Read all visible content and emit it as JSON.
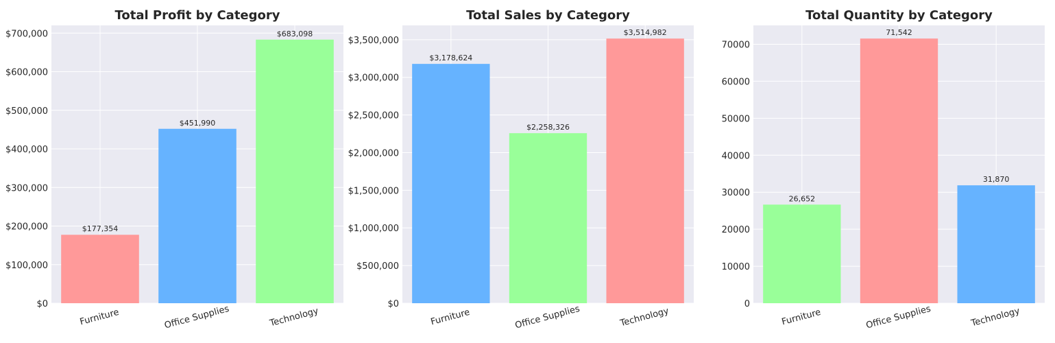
{
  "chart_data": [
    {
      "type": "bar",
      "title": "Total Profit by Category",
      "categories": [
        "Furniture",
        "Office Supplies",
        "Technology"
      ],
      "values": [
        177354,
        451990,
        683098
      ],
      "data_labels": [
        "$177,354",
        "$451,990",
        "$683,098"
      ],
      "colors": [
        "#ff9999",
        "#66b3ff",
        "#99ff99"
      ],
      "ylim": [
        0,
        720000
      ],
      "yticks": [
        0,
        100000,
        200000,
        300000,
        400000,
        500000,
        600000,
        700000
      ],
      "ytick_labels": [
        "$0",
        "$100,000",
        "$200,000",
        "$300,000",
        "$400,000",
        "$500,000",
        "$600,000",
        "$700,000"
      ],
      "grid": true
    },
    {
      "type": "bar",
      "title": "Total Sales by Category",
      "categories": [
        "Furniture",
        "Office Supplies",
        "Technology"
      ],
      "values": [
        3178624,
        2258326,
        3514982
      ],
      "data_labels": [
        "$3,178,624",
        "$2,258,326",
        "$3,514,982"
      ],
      "colors": [
        "#66b3ff",
        "#99ff99",
        "#ff9999"
      ],
      "ylim": [
        0,
        3690000
      ],
      "yticks": [
        0,
        500000,
        1000000,
        1500000,
        2000000,
        2500000,
        3000000,
        3500000
      ],
      "ytick_labels": [
        "$0",
        "$500,000",
        "$1,000,000",
        "$1,500,000",
        "$2,000,000",
        "$2,500,000",
        "$3,000,000",
        "$3,500,000"
      ],
      "grid": true
    },
    {
      "type": "bar",
      "title": "Total Quantity by Category",
      "categories": [
        "Furniture",
        "Office Supplies",
        "Technology"
      ],
      "values": [
        26652,
        71542,
        31870
      ],
      "data_labels": [
        "26,652",
        "71,542",
        "31,870"
      ],
      "colors": [
        "#99ff99",
        "#ff9999",
        "#66b3ff"
      ],
      "ylim": [
        0,
        75100
      ],
      "yticks": [
        0,
        10000,
        20000,
        30000,
        40000,
        50000,
        60000,
        70000
      ],
      "ytick_labels": [
        "0",
        "10000",
        "20000",
        "30000",
        "40000",
        "50000",
        "60000",
        "70000"
      ],
      "grid": true
    }
  ]
}
